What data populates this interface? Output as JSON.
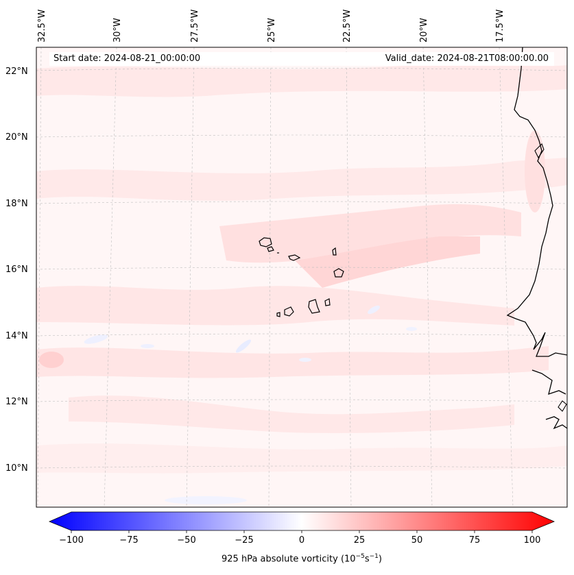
{
  "header": {
    "start_date": "Start date: 2024-08-21_00:00:00",
    "valid_date": "Valid_date: 2024-08-21T08:00:00.00"
  },
  "longitude_ticks": [
    "32.5°W",
    "30°W",
    "27.5°W",
    "25°W",
    "22.5°W",
    "20°W",
    "17.5°W"
  ],
  "latitude_ticks": [
    "22°N",
    "20°N",
    "18°N",
    "16°N",
    "14°N",
    "12°N",
    "10°N"
  ],
  "colorbar": {
    "ticks": [
      "−100",
      "−75",
      "−50",
      "−25",
      "0",
      "25",
      "50",
      "75",
      "100"
    ],
    "label": "925 hPa absolute vorticity (10",
    "label_exp1": "−5",
    "label_mid": "s",
    "label_exp2": "−1",
    "label_end": ")",
    "min_color": "#0000ff",
    "mid_color": "#ffffff",
    "max_color": "#ff0000"
  },
  "field_colors": {
    "background": "#fff6f6",
    "light_positive": "#ffe4e4",
    "stronger_positive": "#ffd0d0",
    "light_negative": "#eef0ff"
  }
}
